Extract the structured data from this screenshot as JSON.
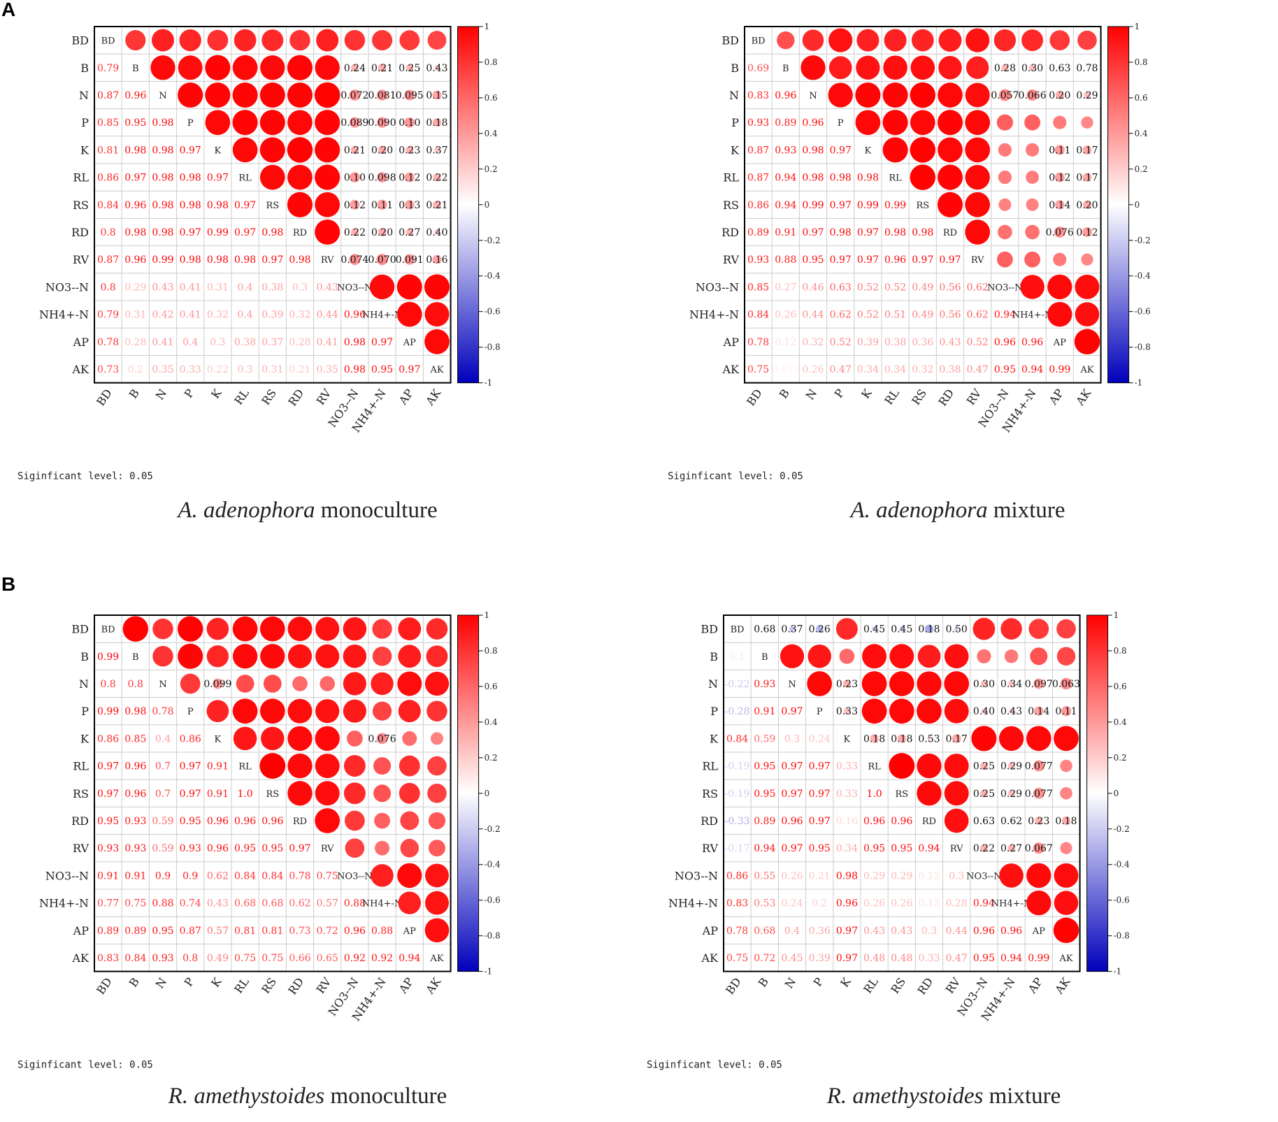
{
  "panels": [
    {
      "letter": "A"
    },
    {
      "letter": "B"
    }
  ],
  "colors": {
    "positive": "#ff0000",
    "negative": "#0000bb",
    "neutral": "#ffffff",
    "grid": "#cccccc",
    "frame": "#000000"
  },
  "chart_data": [
    {
      "type": "heatmap",
      "title": "A. adenophora monoculture",
      "title_species": "A. adenophora",
      "title_suffix": " monoculture",
      "variables": [
        "BD",
        "B",
        "N",
        "P",
        "K",
        "RL",
        "RS",
        "RD",
        "RV",
        "NO3--N",
        "NH4+-N",
        "AP",
        "AK"
      ],
      "significance_note": "Siginficant level: 0.05",
      "colorbar_ticks": [
        "1",
        "0.8",
        "0.6",
        "0.4",
        "0.2",
        "0",
        "-0.2",
        "-0.4",
        "-0.6",
        "-0.8",
        "-1"
      ],
      "lower_values": [
        [
          0.79
        ],
        [
          0.87,
          0.96
        ],
        [
          0.85,
          0.95,
          0.98
        ],
        [
          0.81,
          0.98,
          0.98,
          0.97
        ],
        [
          0.86,
          0.97,
          0.98,
          0.98,
          0.97
        ],
        [
          0.84,
          0.96,
          0.98,
          0.98,
          0.98,
          0.97
        ],
        [
          0.8,
          0.98,
          0.98,
          0.97,
          0.99,
          0.97,
          0.98
        ],
        [
          0.87,
          0.96,
          0.99,
          0.98,
          0.98,
          0.98,
          0.97,
          0.98
        ],
        [
          0.8,
          0.29,
          0.43,
          0.41,
          0.31,
          0.4,
          0.38,
          0.3,
          0.43
        ],
        [
          0.79,
          0.31,
          0.42,
          0.41,
          0.32,
          0.4,
          0.39,
          0.32,
          0.44,
          0.96
        ],
        [
          0.78,
          0.28,
          0.41,
          0.4,
          0.3,
          0.38,
          0.37,
          0.28,
          0.41,
          0.98,
          0.97
        ],
        [
          0.73,
          0.2,
          0.35,
          0.33,
          0.22,
          0.3,
          0.31,
          0.21,
          0.35,
          0.98,
          0.95,
          0.97
        ]
      ],
      "upper_labels": [
        {
          "r": 1,
          "c": 9,
          "t": "0.24"
        },
        {
          "r": 1,
          "c": 10,
          "t": "0.21"
        },
        {
          "r": 1,
          "c": 11,
          "t": "0.25"
        },
        {
          "r": 1,
          "c": 12,
          "t": "0.43"
        },
        {
          "r": 2,
          "c": 9,
          "t": "0.072"
        },
        {
          "r": 2,
          "c": 10,
          "t": "0.081"
        },
        {
          "r": 2,
          "c": 11,
          "t": "0.095"
        },
        {
          "r": 2,
          "c": 12,
          "t": "0.15"
        },
        {
          "r": 3,
          "c": 9,
          "t": "0.089"
        },
        {
          "r": 3,
          "c": 10,
          "t": "0.090"
        },
        {
          "r": 3,
          "c": 11,
          "t": "0.10"
        },
        {
          "r": 3,
          "c": 12,
          "t": "0.18"
        },
        {
          "r": 4,
          "c": 9,
          "t": "0.21"
        },
        {
          "r": 4,
          "c": 10,
          "t": "0.20"
        },
        {
          "r": 4,
          "c": 11,
          "t": "0.23"
        },
        {
          "r": 4,
          "c": 12,
          "t": "0.37"
        },
        {
          "r": 5,
          "c": 9,
          "t": "0.10"
        },
        {
          "r": 5,
          "c": 10,
          "t": "0.098"
        },
        {
          "r": 5,
          "c": 11,
          "t": "0.12"
        },
        {
          "r": 5,
          "c": 12,
          "t": "0.22"
        },
        {
          "r": 6,
          "c": 9,
          "t": "0.12"
        },
        {
          "r": 6,
          "c": 10,
          "t": "0.11"
        },
        {
          "r": 6,
          "c": 11,
          "t": "0.13"
        },
        {
          "r": 6,
          "c": 12,
          "t": "0.21"
        },
        {
          "r": 7,
          "c": 9,
          "t": "0.22"
        },
        {
          "r": 7,
          "c": 10,
          "t": "0.20"
        },
        {
          "r": 7,
          "c": 11,
          "t": "0.27"
        },
        {
          "r": 7,
          "c": 12,
          "t": "0.40"
        },
        {
          "r": 8,
          "c": 9,
          "t": "0.074"
        },
        {
          "r": 8,
          "c": 10,
          "t": "0.070"
        },
        {
          "r": 8,
          "c": 11,
          "t": "0.091"
        },
        {
          "r": 8,
          "c": 12,
          "t": "0.16"
        }
      ]
    },
    {
      "type": "heatmap",
      "title": "A. adenophora mixture",
      "title_species": "A. adenophora",
      "title_suffix": " mixture",
      "variables": [
        "BD",
        "B",
        "N",
        "P",
        "K",
        "RL",
        "RS",
        "RD",
        "RV",
        "NO3--N",
        "NH4+-N",
        "AP",
        "AK"
      ],
      "significance_note": "Siginficant level: 0.05",
      "colorbar_ticks": [
        "1",
        "0.8",
        "0.6",
        "0.4",
        "0.2",
        "0",
        "-0.2",
        "-0.4",
        "-0.6",
        "-0.8",
        "-1"
      ],
      "lower_values": [
        [
          0.69
        ],
        [
          0.83,
          0.96
        ],
        [
          0.93,
          0.89,
          0.96
        ],
        [
          0.87,
          0.93,
          0.98,
          0.97
        ],
        [
          0.87,
          0.94,
          0.98,
          0.98,
          0.98
        ],
        [
          0.86,
          0.94,
          0.99,
          0.97,
          0.99,
          0.99
        ],
        [
          0.89,
          0.91,
          0.97,
          0.98,
          0.97,
          0.98,
          0.98
        ],
        [
          0.93,
          0.88,
          0.95,
          0.97,
          0.97,
          0.96,
          0.97,
          0.97
        ],
        [
          0.85,
          0.27,
          0.46,
          0.63,
          0.52,
          0.52,
          0.49,
          0.56,
          0.62
        ],
        [
          0.84,
          0.26,
          0.44,
          0.62,
          0.52,
          0.51,
          0.49,
          0.56,
          0.62,
          0.94
        ],
        [
          0.78,
          0.12,
          0.32,
          0.52,
          0.39,
          0.38,
          0.36,
          0.43,
          0.52,
          0.96,
          0.96
        ],
        [
          0.75,
          0.073,
          0.26,
          0.47,
          0.34,
          0.34,
          0.32,
          0.38,
          0.47,
          0.95,
          0.94,
          0.99
        ]
      ],
      "upper_labels": [
        {
          "r": 1,
          "c": 9,
          "t": "0.28"
        },
        {
          "r": 1,
          "c": 10,
          "t": "0.30"
        },
        {
          "r": 1,
          "c": 11,
          "t": "0.63"
        },
        {
          "r": 1,
          "c": 12,
          "t": "0.78"
        },
        {
          "r": 2,
          "c": 9,
          "t": "0.057"
        },
        {
          "r": 2,
          "c": 10,
          "t": "0.066"
        },
        {
          "r": 2,
          "c": 11,
          "t": "0.20"
        },
        {
          "r": 2,
          "c": 12,
          "t": "0.29"
        },
        {
          "r": 4,
          "c": 11,
          "t": "0.11"
        },
        {
          "r": 4,
          "c": 12,
          "t": "0.17"
        },
        {
          "r": 5,
          "c": 11,
          "t": "0.12"
        },
        {
          "r": 5,
          "c": 12,
          "t": "0.17"
        },
        {
          "r": 6,
          "c": 11,
          "t": "0.14"
        },
        {
          "r": 6,
          "c": 12,
          "t": "0.20"
        },
        {
          "r": 7,
          "c": 11,
          "t": "0.076"
        },
        {
          "r": 7,
          "c": 12,
          "t": "0.12"
        }
      ]
    },
    {
      "type": "heatmap",
      "title": "R. amethystoides monoculture",
      "title_species": "R. amethystoides",
      "title_suffix": " monoculture",
      "variables": [
        "BD",
        "B",
        "N",
        "P",
        "K",
        "RL",
        "RS",
        "RD",
        "RV",
        "NO3--N",
        "NH4+-N",
        "AP",
        "AK"
      ],
      "significance_note": "Siginficant level: 0.05",
      "colorbar_ticks": [
        "1",
        "0.8",
        "0.6",
        "0.4",
        "0.2",
        "0",
        "-0.2",
        "-0.4",
        "-0.6",
        "-0.8",
        "-1"
      ],
      "lower_values": [
        [
          0.99
        ],
        [
          0.8,
          0.8
        ],
        [
          0.99,
          0.98,
          0.78
        ],
        [
          0.86,
          0.85,
          0.4,
          0.86
        ],
        [
          0.97,
          0.96,
          0.7,
          0.97,
          0.91
        ],
        [
          0.97,
          0.96,
          0.7,
          0.97,
          0.91,
          1.0
        ],
        [
          0.95,
          0.93,
          0.59,
          0.95,
          0.96,
          0.96,
          0.96
        ],
        [
          0.93,
          0.93,
          0.59,
          0.93,
          0.96,
          0.95,
          0.95,
          0.97
        ],
        [
          0.91,
          0.91,
          0.9,
          0.9,
          0.62,
          0.84,
          0.84,
          0.78,
          0.75
        ],
        [
          0.77,
          0.75,
          0.88,
          0.74,
          0.43,
          0.68,
          0.68,
          0.62,
          0.57,
          0.88
        ],
        [
          0.89,
          0.89,
          0.95,
          0.87,
          0.57,
          0.81,
          0.81,
          0.73,
          0.72,
          0.96,
          0.88
        ],
        [
          0.83,
          0.84,
          0.93,
          0.8,
          0.49,
          0.75,
          0.75,
          0.66,
          0.65,
          0.92,
          0.92,
          0.94
        ]
      ],
      "upper_labels": [
        {
          "r": 2,
          "c": 4,
          "t": "0.099"
        },
        {
          "r": 4,
          "c": 10,
          "t": "0.076"
        }
      ]
    },
    {
      "type": "heatmap",
      "title": "R. amethystoides mixture",
      "title_species": "R. amethystoides",
      "title_suffix": " mixture",
      "variables": [
        "BD",
        "B",
        "N",
        "P",
        "K",
        "RL",
        "RS",
        "RD",
        "RV",
        "NO3--N",
        "NH4+-N",
        "AP",
        "AK"
      ],
      "significance_note": "Siginficant level: 0.05",
      "colorbar_ticks": [
        "1",
        "0.8",
        "0.6",
        "0.4",
        "0.2",
        "0",
        "-0.2",
        "-0.4",
        "-0.6",
        "-0.8",
        "-1"
      ],
      "lower_values": [
        [
          0.1
        ],
        [
          -0.22,
          0.93
        ],
        [
          -0.28,
          0.91,
          0.97
        ],
        [
          0.84,
          0.59,
          0.3,
          0.24
        ],
        [
          -0.19,
          0.95,
          0.97,
          0.97,
          0.33
        ],
        [
          -0.19,
          0.95,
          0.97,
          0.97,
          0.33,
          1.0
        ],
        [
          -0.33,
          0.89,
          0.96,
          0.97,
          0.16,
          0.96,
          0.96
        ],
        [
          -0.17,
          0.94,
          0.97,
          0.95,
          0.34,
          0.95,
          0.95,
          0.94
        ],
        [
          0.86,
          0.55,
          0.26,
          0.21,
          0.98,
          0.29,
          0.29,
          0.12,
          0.3
        ],
        [
          0.83,
          0.53,
          0.24,
          0.2,
          0.96,
          0.26,
          0.26,
          0.13,
          0.28,
          0.94
        ],
        [
          0.78,
          0.68,
          0.4,
          0.36,
          0.97,
          0.43,
          0.43,
          0.3,
          0.44,
          0.96,
          0.96
        ],
        [
          0.75,
          0.72,
          0.45,
          0.39,
          0.97,
          0.48,
          0.48,
          0.33,
          0.47,
          0.95,
          0.94,
          0.99
        ]
      ],
      "upper_labels": [
        {
          "r": 0,
          "c": 1,
          "t": "0.68"
        },
        {
          "r": 0,
          "c": 2,
          "t": "0.37"
        },
        {
          "r": 0,
          "c": 3,
          "t": "0.26"
        },
        {
          "r": 0,
          "c": 5,
          "t": "0.45"
        },
        {
          "r": 0,
          "c": 6,
          "t": "0.45"
        },
        {
          "r": 0,
          "c": 7,
          "t": "0.18"
        },
        {
          "r": 0,
          "c": 8,
          "t": "0.50"
        },
        {
          "r": 2,
          "c": 4,
          "t": "0.23"
        },
        {
          "r": 2,
          "c": 9,
          "t": "0.30"
        },
        {
          "r": 2,
          "c": 10,
          "t": "0.34"
        },
        {
          "r": 2,
          "c": 11,
          "t": "0.097"
        },
        {
          "r": 2,
          "c": 12,
          "t": "0.063"
        },
        {
          "r": 3,
          "c": 4,
          "t": "0.33"
        },
        {
          "r": 3,
          "c": 9,
          "t": "0.40"
        },
        {
          "r": 3,
          "c": 10,
          "t": "0.43"
        },
        {
          "r": 3,
          "c": 11,
          "t": "0.14"
        },
        {
          "r": 3,
          "c": 12,
          "t": "0.11"
        },
        {
          "r": 4,
          "c": 5,
          "t": "0.18"
        },
        {
          "r": 4,
          "c": 6,
          "t": "0.18"
        },
        {
          "r": 4,
          "c": 7,
          "t": "0.53"
        },
        {
          "r": 4,
          "c": 8,
          "t": "0.17"
        },
        {
          "r": 5,
          "c": 9,
          "t": "0.25"
        },
        {
          "r": 5,
          "c": 10,
          "t": "0.29"
        },
        {
          "r": 5,
          "c": 11,
          "t": "0.077"
        },
        {
          "r": 6,
          "c": 9,
          "t": "0.25"
        },
        {
          "r": 6,
          "c": 10,
          "t": "0.29"
        },
        {
          "r": 6,
          "c": 11,
          "t": "0.077"
        },
        {
          "r": 7,
          "c": 9,
          "t": "0.63"
        },
        {
          "r": 7,
          "c": 10,
          "t": "0.62"
        },
        {
          "r": 7,
          "c": 11,
          "t": "0.23"
        },
        {
          "r": 7,
          "c": 12,
          "t": "0.18"
        },
        {
          "r": 8,
          "c": 9,
          "t": "0.22"
        },
        {
          "r": 8,
          "c": 10,
          "t": "0.27"
        },
        {
          "r": 8,
          "c": 11,
          "t": "0.067"
        }
      ]
    }
  ]
}
